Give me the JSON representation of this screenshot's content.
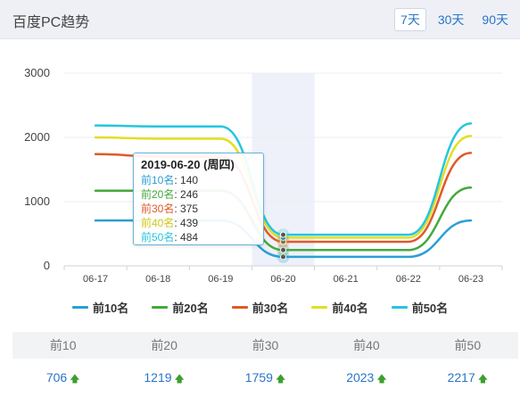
{
  "header": {
    "title": "百度PC趋势",
    "ranges": [
      {
        "label": "7天",
        "active": true
      },
      {
        "label": "30天",
        "active": false
      },
      {
        "label": "90天",
        "active": false
      }
    ]
  },
  "tooltip": {
    "title": "2019-06-20 (周四)",
    "rows": [
      {
        "name": "前10名",
        "value": "140"
      },
      {
        "name": "前20名",
        "value": "246"
      },
      {
        "name": "前30名",
        "value": "375"
      },
      {
        "name": "前40名",
        "value": "439"
      },
      {
        "name": "前50名",
        "value": "484"
      }
    ]
  },
  "chart_data": {
    "type": "line",
    "x": [
      "06-17",
      "06-18",
      "06-19",
      "06-20",
      "06-21",
      "06-22",
      "06-23"
    ],
    "ylim": [
      0,
      3000
    ],
    "yticks": [
      0,
      1000,
      2000,
      3000
    ],
    "highlight_category": "06-20",
    "series": [
      {
        "name": "前10名",
        "color": "#2b9fd4",
        "values": [
          706,
          706,
          706,
          140,
          140,
          140,
          706
        ]
      },
      {
        "name": "前20名",
        "color": "#46a83e",
        "values": [
          1170,
          1170,
          1170,
          246,
          246,
          246,
          1219
        ]
      },
      {
        "name": "前30名",
        "color": "#de5a2a",
        "values": [
          1740,
          1700,
          1700,
          375,
          375,
          375,
          1759
        ]
      },
      {
        "name": "前40名",
        "color": "#e6dd22",
        "values": [
          2000,
          1980,
          1980,
          439,
          439,
          439,
          2023
        ]
      },
      {
        "name": "前50名",
        "color": "#25c6de",
        "values": [
          2185,
          2170,
          2170,
          484,
          484,
          484,
          2217
        ]
      }
    ],
    "legend_position": "bottom"
  },
  "summary": {
    "columns": [
      "前10",
      "前20",
      "前30",
      "前40",
      "前50"
    ],
    "values": [
      "706",
      "1219",
      "1759",
      "2023",
      "2217"
    ],
    "trend_icon": "up-arrow-icon",
    "trend_glyph": "🡅"
  }
}
